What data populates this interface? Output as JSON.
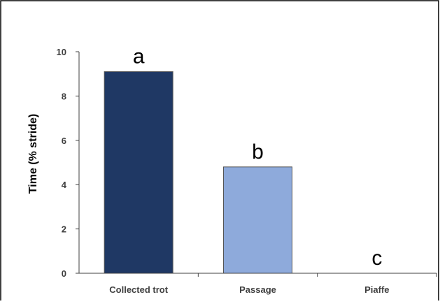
{
  "chart_data": {
    "type": "bar",
    "title": "",
    "xlabel": "",
    "ylabel": "Time (% stride)",
    "categories": [
      "Collected trot",
      "Passage",
      "Piaffe"
    ],
    "values": [
      9.1,
      4.8,
      0
    ],
    "annotations": [
      "a",
      "b",
      "c"
    ],
    "ylim": [
      0,
      10
    ],
    "yticks": [
      "0",
      "2",
      "4",
      "6",
      "8",
      "10"
    ],
    "ytick_values": [
      0,
      2,
      4,
      6,
      8,
      10
    ],
    "colors": [
      "#1f3864",
      "#8eaadb",
      "#8eaadb"
    ],
    "bar_border": "#555555",
    "grid": false,
    "legend": "none"
  }
}
